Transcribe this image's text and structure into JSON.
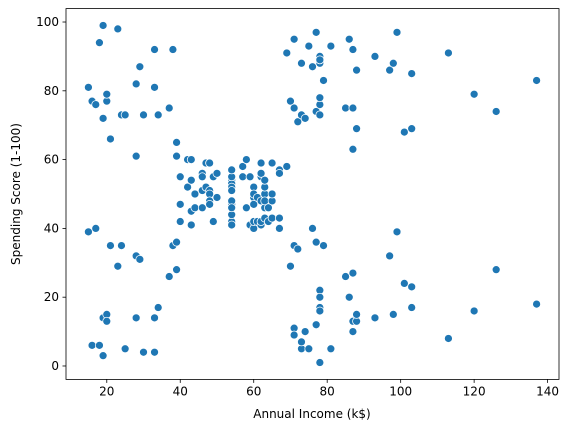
{
  "chart_data": {
    "type": "scatter",
    "x_label": "Annual Income (k$)",
    "y_label": "Spending Score (1-100)",
    "color": "#1f77b4",
    "xlim": [
      8.9,
      143.1
    ],
    "ylim": [
      -3.9,
      103.9
    ],
    "xticks": [
      20,
      40,
      60,
      80,
      100,
      120,
      140
    ],
    "yticks": [
      0,
      20,
      40,
      60,
      80,
      100
    ],
    "x": [
      15,
      15,
      16,
      16,
      17,
      17,
      18,
      18,
      19,
      19,
      19,
      19,
      20,
      20,
      20,
      20,
      21,
      21,
      23,
      23,
      24,
      24,
      25,
      25,
      28,
      28,
      28,
      28,
      29,
      29,
      30,
      30,
      33,
      33,
      33,
      33,
      34,
      34,
      37,
      37,
      38,
      38,
      39,
      39,
      39,
      39,
      40,
      40,
      40,
      40,
      42,
      42,
      43,
      43,
      43,
      43,
      44,
      44,
      46,
      46,
      46,
      46,
      47,
      47,
      48,
      48,
      48,
      48,
      48,
      48,
      49,
      49,
      50,
      50,
      54,
      54,
      54,
      54,
      54,
      54,
      54,
      54,
      54,
      54,
      54,
      54,
      57,
      57,
      58,
      58,
      59,
      59,
      60,
      60,
      60,
      60,
      60,
      60,
      61,
      61,
      62,
      62,
      62,
      62,
      62,
      62,
      63,
      63,
      63,
      63,
      63,
      63,
      64,
      64,
      65,
      65,
      65,
      65,
      67,
      67,
      67,
      67,
      69,
      69,
      70,
      70,
      71,
      71,
      71,
      71,
      71,
      71,
      72,
      72,
      73,
      73,
      73,
      73,
      74,
      74,
      75,
      75,
      76,
      76,
      77,
      77,
      77,
      77,
      78,
      78,
      78,
      78,
      78,
      78,
      78,
      78,
      78,
      78,
      78,
      78,
      79,
      79,
      81,
      81,
      85,
      85,
      86,
      86,
      87,
      87,
      87,
      87,
      87,
      87,
      88,
      88,
      88,
      88,
      93,
      93,
      97,
      97,
      98,
      98,
      99,
      99,
      101,
      101,
      103,
      103,
      103,
      103,
      113,
      113,
      120,
      120,
      126,
      126,
      137,
      137
    ],
    "y": [
      39,
      81,
      6,
      77,
      40,
      76,
      6,
      94,
      3,
      72,
      14,
      99,
      15,
      77,
      13,
      79,
      35,
      66,
      29,
      98,
      35,
      73,
      5,
      73,
      14,
      82,
      32,
      61,
      31,
      87,
      4,
      73,
      4,
      92,
      14,
      81,
      17,
      73,
      26,
      75,
      35,
      92,
      36,
      61,
      28,
      65,
      55,
      47,
      42,
      42,
      52,
      60,
      54,
      60,
      45,
      41,
      50,
      46,
      51,
      46,
      56,
      55,
      52,
      59,
      51,
      59,
      50,
      48,
      59,
      47,
      55,
      42,
      49,
      56,
      47,
      54,
      53,
      48,
      52,
      42,
      51,
      55,
      41,
      44,
      57,
      46,
      58,
      55,
      60,
      46,
      55,
      41,
      49,
      40,
      42,
      52,
      47,
      50,
      42,
      49,
      41,
      48,
      59,
      55,
      56,
      42,
      50,
      46,
      43,
      48,
      52,
      54,
      42,
      46,
      48,
      50,
      43,
      59,
      43,
      57,
      56,
      40,
      58,
      91,
      29,
      77,
      35,
      95,
      11,
      75,
      9,
      75,
      34,
      71,
      5,
      88,
      7,
      73,
      10,
      72,
      5,
      93,
      40,
      87,
      12,
      97,
      36,
      74,
      22,
      90,
      17,
      88,
      20,
      76,
      16,
      89,
      1,
      78,
      1,
      73,
      35,
      83,
      5,
      93,
      26,
      75,
      20,
      95,
      27,
      63,
      13,
      75,
      10,
      92,
      13,
      86,
      15,
      69,
      14,
      90,
      32,
      86,
      15,
      88,
      39,
      97,
      24,
      68,
      17,
      85,
      23,
      69,
      8,
      91,
      16,
      79,
      28,
      74,
      18,
      83
    ]
  }
}
